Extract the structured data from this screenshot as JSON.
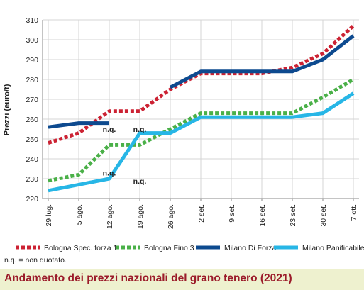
{
  "chart_data": {
    "type": "line",
    "title": "Andamento dei prezzi nazionali del grano tenero (2021)",
    "ylabel": "Prezzi (euro/t)",
    "xlabel": "",
    "ylim": [
      220,
      310
    ],
    "yticks": [
      220,
      230,
      240,
      250,
      260,
      270,
      280,
      290,
      300,
      310
    ],
    "categories": [
      "29 lug.",
      "5 ago.",
      "12 ago.",
      "19 ago.",
      "26 ago.",
      "2 set.",
      "9 set.",
      "16 set.",
      "23 set.",
      "30 set.",
      "7 ott."
    ],
    "grid": true,
    "legend_position": "bottom",
    "series": [
      {
        "name": "Bologna Spec. forza 1",
        "color": "#cc2233",
        "dash": true,
        "values": [
          248,
          253,
          264,
          264,
          275,
          283,
          283,
          283,
          286,
          293,
          307
        ]
      },
      {
        "name": "Bologna Fino 3",
        "color": "#4ab048",
        "dash": true,
        "values": [
          229,
          232,
          247,
          247,
          255,
          263,
          263,
          263,
          263,
          271,
          280
        ]
      },
      {
        "name": "Milano Di Forza",
        "color": "#0d4a8f",
        "dash": false,
        "values": [
          256,
          258,
          258,
          null,
          276,
          284,
          284,
          284,
          284,
          290,
          302
        ]
      },
      {
        "name": "Milano Panificabile",
        "color": "#27b6e6",
        "dash": false,
        "values": [
          224,
          227,
          230,
          253,
          253,
          261,
          261,
          261,
          261,
          263,
          273
        ]
      }
    ],
    "annotations": [
      {
        "text": "n.q.",
        "category": "12 ago.",
        "y": 255
      },
      {
        "text": "n.q.",
        "category": "19 ago.",
        "y": 255
      },
      {
        "text": "n.q.",
        "category": "12 ago.",
        "y": 233
      },
      {
        "text": "n.q.",
        "category": "19 ago.",
        "y": 229
      }
    ]
  },
  "note": "n.q. = non quotato."
}
